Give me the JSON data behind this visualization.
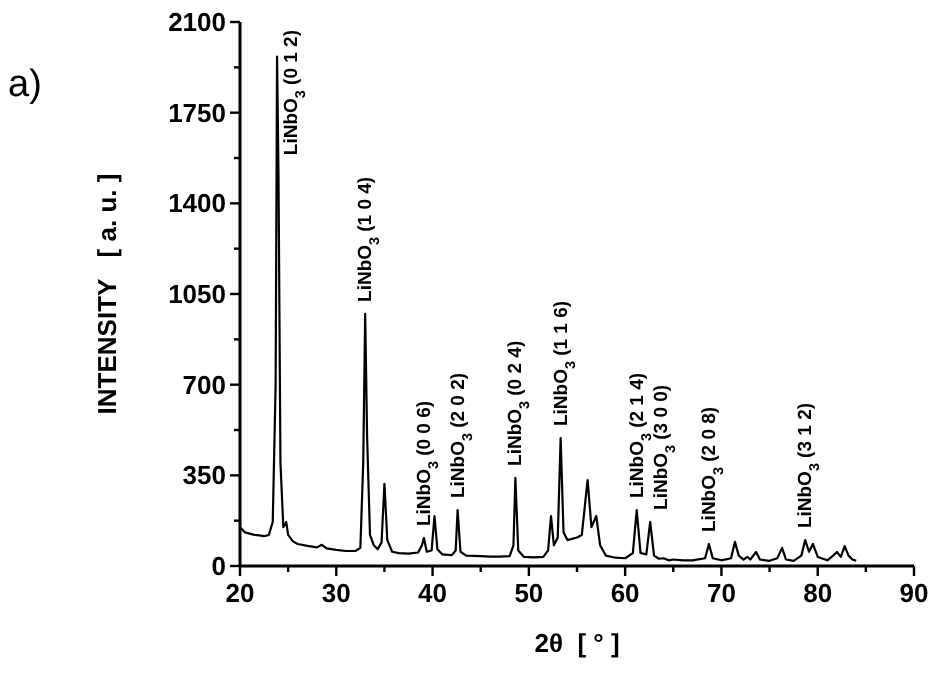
{
  "chart_data": {
    "type": "line",
    "title": "a)",
    "xlabel": "2θ  [ ° ]",
    "ylabel": "INTENSITY   [ a. u. ]",
    "xlim": [
      20,
      90
    ],
    "xticks": [
      20,
      {
        "value": 25,
        "label": null
      },
      30,
      {
        "value": 35,
        "label": null
      },
      40,
      {
        "value": 45,
        "label": null
      },
      50,
      {
        "value": 55,
        "label": null
      },
      60,
      {
        "value": 65,
        "label": null
      },
      70,
      {
        "value": 75,
        "label": null
      },
      80,
      {
        "value": 85,
        "label": null
      },
      90
    ],
    "ylim": [
      0,
      2100
    ],
    "yticks": [
      0,
      {
        "value": 175,
        "label": null
      },
      350,
      {
        "value": 525,
        "label": null
      },
      700,
      {
        "value": 875,
        "label": null
      },
      1050,
      {
        "value": 1225,
        "label": null
      },
      1400,
      {
        "value": 1575,
        "label": null
      },
      1750,
      {
        "value": 1925,
        "label": null
      },
      2100
    ],
    "grid": false,
    "marker": "none",
    "line_style": "solid",
    "series": [
      {
        "color": "#000000",
        "x": [
          20,
          20.5,
          21,
          21.5,
          22,
          22.5,
          23,
          23.4,
          23.7,
          23.85,
          24.0,
          24.2,
          24.5,
          24.8,
          25.0,
          25.5,
          26,
          27,
          28,
          28.5,
          29,
          30,
          31,
          32,
          32.5,
          32.8,
          33.0,
          33.2,
          33.5,
          33.9,
          34.3,
          34.7,
          35.0,
          35.3,
          35.8,
          36.5,
          37.5,
          38.5,
          38.9,
          39.1,
          39.4,
          39.9,
          40.2,
          40.5,
          41,
          42,
          42.4,
          42.6,
          42.9,
          43.5,
          45,
          46,
          47,
          48,
          48.4,
          48.6,
          48.9,
          49.5,
          50.5,
          51.5,
          52,
          52.3,
          52.6,
          53,
          53.3,
          53.6,
          54,
          55,
          55.5,
          56.1,
          56.5,
          57,
          57.4,
          58,
          59,
          60,
          60.8,
          61.2,
          61.6,
          62.2,
          62.6,
          63,
          63.5,
          64,
          64.5,
          65,
          66,
          67,
          68.3,
          68.7,
          69.1,
          70,
          71,
          71.4,
          71.8,
          72.3,
          72.7,
          73,
          73.6,
          74,
          75,
          75.8,
          76.3,
          76.7,
          77.5,
          78.3,
          78.7,
          79.1,
          79.5,
          80,
          81,
          81.6,
          82.0,
          82.4,
          82.8,
          83.2,
          83.6,
          84
        ],
        "values": [
          150,
          130,
          125,
          120,
          118,
          115,
          120,
          170,
          700,
          1966,
          1500,
          400,
          150,
          170,
          120,
          95,
          85,
          78,
          72,
          82,
          68,
          62,
          58,
          58,
          70,
          400,
          973,
          500,
          120,
          80,
          65,
          90,
          317,
          100,
          55,
          50,
          48,
          52,
          80,
          108,
          55,
          60,
          193,
          65,
          45,
          42,
          60,
          216,
          55,
          40,
          38,
          36,
          36,
          38,
          80,
          340,
          60,
          35,
          33,
          35,
          60,
          193,
          80,
          110,
          494,
          130,
          100,
          110,
          120,
          332,
          150,
          193,
          80,
          40,
          32,
          30,
          50,
          216,
          50,
          45,
          170,
          40,
          28,
          30,
          22,
          25,
          22,
          22,
          30,
          85,
          30,
          22,
          30,
          93,
          40,
          25,
          35,
          25,
          54,
          25,
          20,
          30,
          70,
          25,
          20,
          40,
          100,
          55,
          85,
          35,
          22,
          40,
          54,
          35,
          77,
          40,
          25,
          20
        ]
      }
    ],
    "annotations": [
      {
        "text": "LiNbO$_{3}$ (0 1 2)",
        "x": 23.85,
        "y": 1966
      },
      {
        "text": "LiNbO$_{3}$ (1 0 4)",
        "x": 33.0,
        "y": 973
      },
      {
        "text": "LiNbO$_{3}$ (0 0 6)",
        "x": 39.1,
        "y": 108
      },
      {
        "text": "LiNbO$_{3}$ (2 0 2)",
        "x": 42.6,
        "y": 216
      },
      {
        "text": "LiNbO$_{3}$ (0 2 4)",
        "x": 48.6,
        "y": 340
      },
      {
        "text": "LiNbO$_{3}$ (1 1 6)",
        "x": 53.3,
        "y": 494
      },
      {
        "text": "LiNbO$_{3}$ (2 1 4)",
        "x": 61.2,
        "y": 216
      },
      {
        "text": "LiNbO$_{3}$ (3 0 0)",
        "x": 62.6,
        "y": 170
      },
      {
        "text": "LiNbO$_{3}$ (2 0 8)",
        "x": 68.7,
        "y": 85
      },
      {
        "text": "LiNbO$_{3}$ (3 1 2)",
        "x": 78.7,
        "y": 100
      }
    ]
  }
}
